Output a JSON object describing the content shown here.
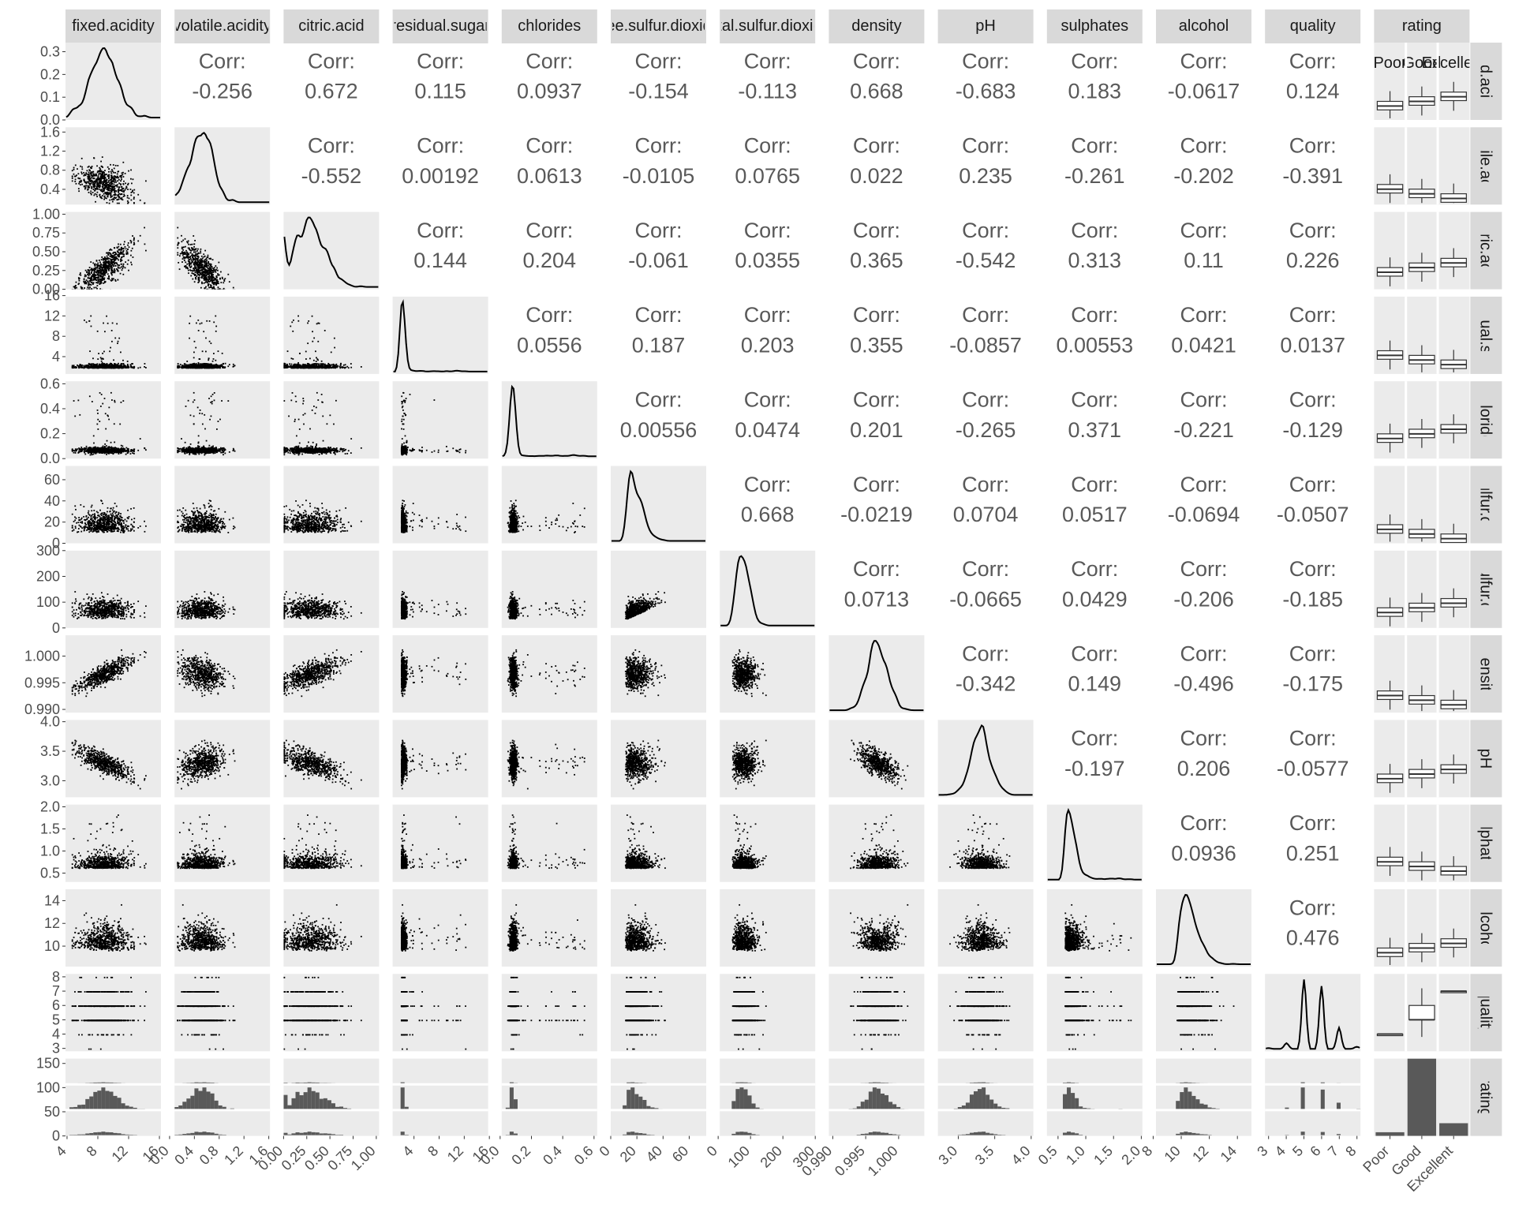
{
  "chart_data": {
    "type": "scatter-matrix",
    "variables": [
      "fixed.acidity",
      "volatile.acidity",
      "citric.acid",
      "residual.sugar",
      "chlorides",
      "free.sulfur.dioxide",
      "total.sulfur.dioxide",
      "density",
      "pH",
      "sulphates",
      "alcohol",
      "quality",
      "rating"
    ],
    "column_strip_labels": [
      "fixed.acidity",
      "volatile.acidity",
      "citric.acid",
      "residual.sugar",
      "chlorides",
      "free.sulfur.dioxide",
      "total.sulfur.dioxide",
      "density",
      "pH",
      "sulphates",
      "alcohol",
      "quality",
      "rating"
    ],
    "row_strip_labels": [
      "fixed.acidity",
      "volatile.acidity",
      "citric.acid",
      "residual.sugar",
      "chlorides",
      "free.sulfur.dioxide",
      "total.sulfur.dioxide",
      "density",
      "pH",
      "sulphates",
      "alcohol",
      "quality",
      "rating"
    ],
    "corr_label": "Corr:",
    "correlations": [
      [
        "-0.256",
        "0.672",
        "0.115",
        "0.0937",
        "-0.154",
        "-0.113",
        "0.668",
        "-0.683",
        "0.183",
        "-0.0617",
        "0.124"
      ],
      [
        "-0.552",
        "0.00192",
        "0.0613",
        "-0.0105",
        "0.0765",
        "0.022",
        "0.235",
        "-0.261",
        "-0.202",
        "-0.391"
      ],
      [
        "0.144",
        "0.204",
        "-0.061",
        "0.0355",
        "0.365",
        "-0.542",
        "0.313",
        "0.11",
        "0.226"
      ],
      [
        "0.0556",
        "0.187",
        "0.203",
        "0.355",
        "-0.0857",
        "0.00553",
        "0.0421",
        "0.0137"
      ],
      [
        "0.00556",
        "0.0474",
        "0.201",
        "-0.265",
        "0.371",
        "-0.221",
        "-0.129"
      ],
      [
        "0.668",
        "-0.0219",
        "0.0704",
        "0.0517",
        "-0.0694",
        "-0.0507"
      ],
      [
        "0.0713",
        "-0.0665",
        "0.0429",
        "-0.206",
        "-0.185"
      ],
      [
        "-0.342",
        "0.149",
        "-0.496",
        "-0.175"
      ],
      [
        "-0.197",
        "0.206",
        "-0.0577"
      ],
      [
        "0.0936",
        "0.251"
      ],
      [
        "0.476"
      ]
    ],
    "y_tick_labels": [
      [
        "0.0",
        "0.1",
        "0.2",
        "0.3"
      ],
      [
        "0.4",
        "0.8",
        "1.2",
        "1.6"
      ],
      [
        "0.00",
        "0.25",
        "0.50",
        "0.75",
        "1.00"
      ],
      [
        "4",
        "8",
        "12",
        "16"
      ],
      [
        "0.0",
        "0.2",
        "0.4",
        "0.6"
      ],
      [
        "0",
        "20",
        "40",
        "60"
      ],
      [
        "0",
        "100",
        "200",
        "300"
      ],
      [
        "0.990",
        "0.995",
        "1.000"
      ],
      [
        "3.0",
        "3.5",
        "4.0"
      ],
      [
        "0.5",
        "1.0",
        "1.5",
        "2.0"
      ],
      [
        "10",
        "12",
        "14"
      ],
      [
        "3",
        "4",
        "5",
        "6",
        "7",
        "8"
      ],
      [
        "0",
        "50",
        "100",
        "150"
      ]
    ],
    "x_tick_labels": [
      [
        "4",
        "8",
        "12",
        "16"
      ],
      [
        "0.0",
        "0.4",
        "0.8",
        "1.2",
        "1.6"
      ],
      [
        "0.00",
        "0.25",
        "0.50",
        "0.75",
        "1.00"
      ],
      [
        "4",
        "8",
        "12",
        "16"
      ],
      [
        "0.0",
        "0.2",
        "0.4",
        "0.6"
      ],
      [
        "0",
        "20",
        "40",
        "60"
      ],
      [
        "0",
        "100",
        "200",
        "300"
      ],
      [
        "0.990",
        "0.995",
        "1.000"
      ],
      [
        "3.0",
        "3.5",
        "4.0"
      ],
      [
        "0.5",
        "1.0",
        "1.5",
        "2.0"
      ],
      [
        "8",
        "10",
        "12",
        "14"
      ],
      [
        "3",
        "4",
        "5",
        "6",
        "7",
        "8"
      ],
      [
        "Poor",
        "Good",
        "Excellent"
      ]
    ],
    "rating_levels": [
      "Poor",
      "Good",
      "Excellent"
    ],
    "rating_counts": [
      63,
      1319,
      217
    ],
    "quality_density_peaks": [
      5,
      6,
      7
    ],
    "colors": {
      "panel": "#ebebeb",
      "strip": "#d9d9d9",
      "box_fill": "#ffffff",
      "bar": "#595959",
      "points": "#000000"
    }
  }
}
